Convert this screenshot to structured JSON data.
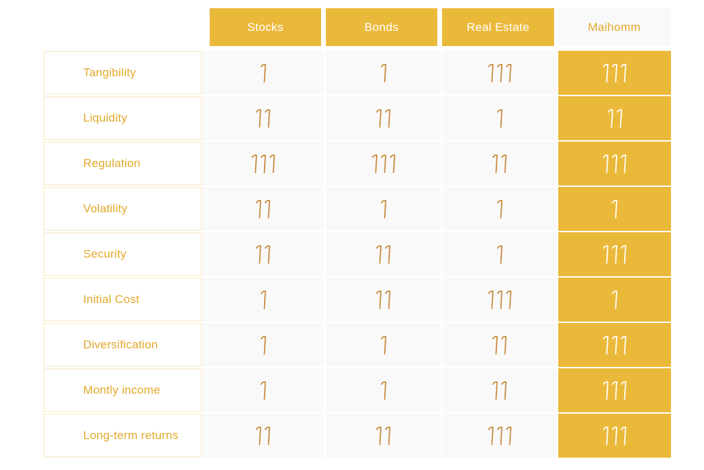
{
  "columns": [
    {
      "label": "Stocks",
      "style": "gold"
    },
    {
      "label": "Bonds",
      "style": "gold"
    },
    {
      "label": "Real Estate",
      "style": "gold"
    },
    {
      "label": "Maihomm",
      "style": "plain"
    }
  ],
  "rows": [
    {
      "label": "Tangibility",
      "values": [
        1,
        1,
        3,
        3
      ]
    },
    {
      "label": "Liquidity",
      "values": [
        2,
        2,
        1,
        2
      ]
    },
    {
      "label": "Regulation",
      "values": [
        3,
        3,
        2,
        3
      ]
    },
    {
      "label": "Volatility",
      "values": [
        2,
        1,
        1,
        1
      ]
    },
    {
      "label": "Security",
      "values": [
        2,
        2,
        1,
        3
      ]
    },
    {
      "label": "Initial Cost",
      "values": [
        1,
        2,
        3,
        1
      ]
    },
    {
      "label": "Diversification",
      "values": [
        1,
        1,
        2,
        3
      ]
    },
    {
      "label": "Montly income",
      "values": [
        1,
        1,
        2,
        3
      ]
    },
    {
      "label": "Long-term returns",
      "values": [
        2,
        2,
        3,
        3
      ]
    }
  ],
  "icon": "rating-mark-icon",
  "colors": {
    "accent": "#ebb93a",
    "label_text": "#e3a92c",
    "mark_on_light": "#c98a3c",
    "mark_on_gold": "#ffffff",
    "cell_bg": "#f9f9f9"
  }
}
